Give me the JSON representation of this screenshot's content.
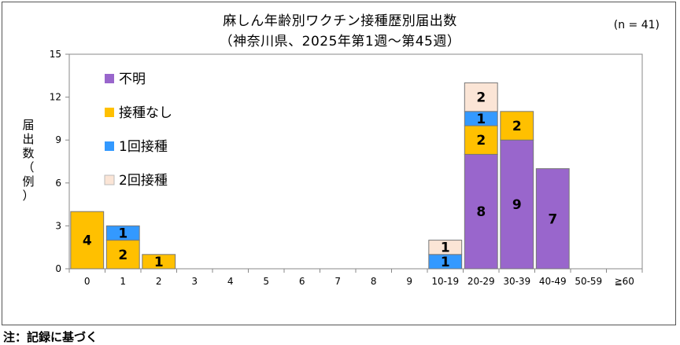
{
  "page": {
    "title_line1": "麻しん年齢別ワクチン接種歴別届出数",
    "title_line2": "（神奈川県、2025年第1週～第45週）",
    "n_label": "(n = 41)",
    "ylabel_chars": [
      "届",
      "出",
      "数",
      "（",
      "例",
      "）"
    ],
    "note": "注：記録に基づく"
  },
  "colors": {
    "unknown": "#9966CC",
    "none": "#FFC000",
    "one_dose": "#3399FF",
    "two_dose": "#FBE5D6",
    "border": "#555555"
  },
  "chart_data": {
    "type": "bar",
    "stacked": true,
    "title": "麻しん年齢別ワクチン接種歴別届出数（神奈川県、2025年第1週～第45週）",
    "ylabel": "届出数（例）",
    "xlabel": "",
    "ylim": [
      0,
      15
    ],
    "yticks": [
      0,
      3,
      6,
      9,
      12,
      15
    ],
    "grid": false,
    "legend_position": "top-left",
    "categories": [
      "0",
      "1",
      "2",
      "3",
      "4",
      "5",
      "6",
      "7",
      "8",
      "9",
      "10-19",
      "20-29",
      "30-39",
      "40-49",
      "50-59",
      "≧60"
    ],
    "series": [
      {
        "name": "不明",
        "key": "unknown",
        "values": [
          0,
          0,
          0,
          0,
          0,
          0,
          0,
          0,
          0,
          0,
          0,
          8,
          9,
          7,
          0,
          0
        ]
      },
      {
        "name": "接種なし",
        "key": "none",
        "values": [
          4,
          2,
          1,
          0,
          0,
          0,
          0,
          0,
          0,
          0,
          0,
          2,
          2,
          0,
          0,
          0
        ]
      },
      {
        "name": "1回接種",
        "key": "one_dose",
        "values": [
          0,
          1,
          0,
          0,
          0,
          0,
          0,
          0,
          0,
          0,
          1,
          1,
          0,
          0,
          0,
          0
        ]
      },
      {
        "name": "2回接種",
        "key": "two_dose",
        "values": [
          0,
          0,
          0,
          0,
          0,
          0,
          0,
          0,
          0,
          0,
          1,
          2,
          0,
          0,
          0,
          0
        ]
      }
    ],
    "legend_order": [
      "unknown",
      "none",
      "one_dose",
      "two_dose"
    ]
  }
}
